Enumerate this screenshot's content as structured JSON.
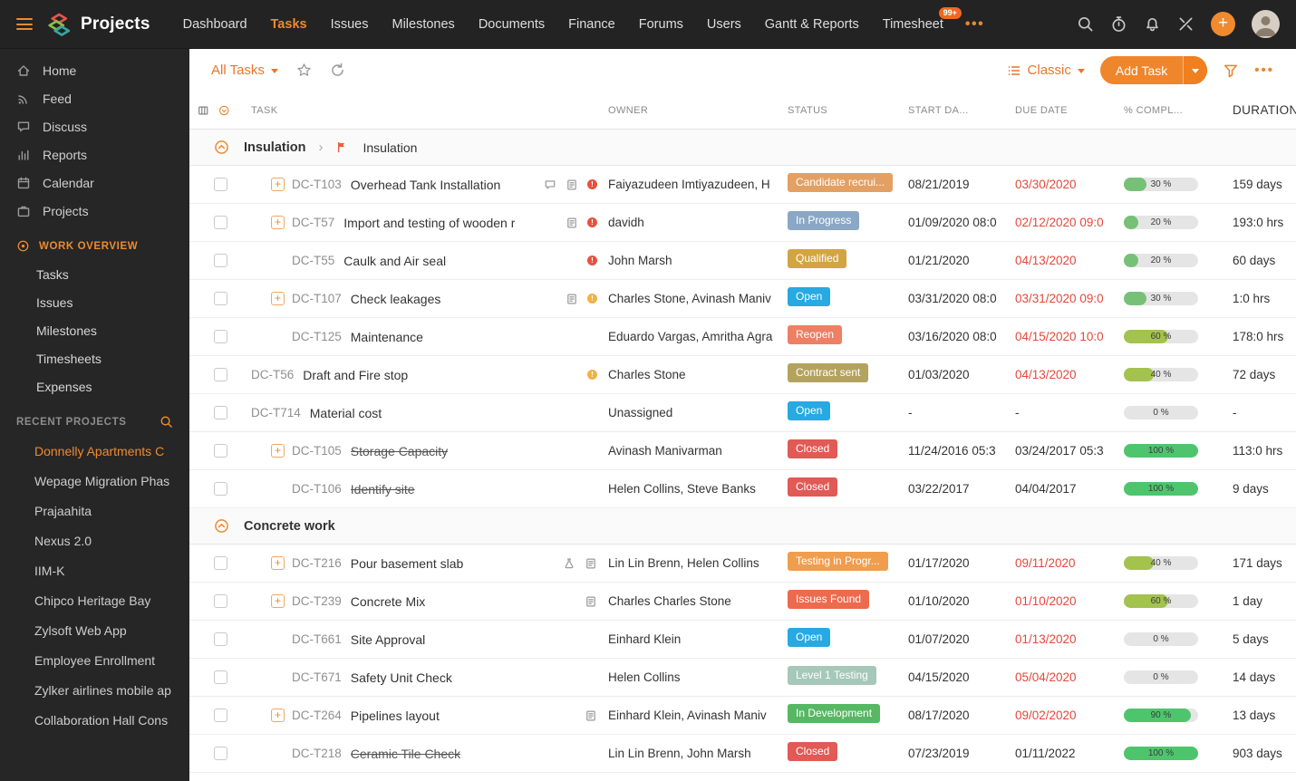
{
  "colors": {
    "accent": "#ef8a2e",
    "overdue_red": "#e5473a",
    "topbar_bg": "#232323",
    "sidebar_bg": "#262626",
    "priority_high": "#e8503e",
    "priority_medium": "#f5b041"
  },
  "topbar": {
    "logo": "Projects",
    "nav": [
      {
        "label": "Dashboard"
      },
      {
        "label": "Tasks",
        "active": true
      },
      {
        "label": "Issues"
      },
      {
        "label": "Milestones"
      },
      {
        "label": "Documents"
      },
      {
        "label": "Finance"
      },
      {
        "label": "Forums"
      },
      {
        "label": "Users"
      },
      {
        "label": "Gantt & Reports"
      },
      {
        "label": "Timesheet",
        "badge": "99+"
      }
    ],
    "more_label": "•••",
    "right_icons": [
      "search-icon",
      "timer-icon",
      "bell-icon",
      "tools-icon",
      "add-icon",
      "user-avatar"
    ]
  },
  "sidebar": {
    "main": [
      {
        "label": "Home",
        "icon": "home-icon"
      },
      {
        "label": "Feed",
        "icon": "feed-icon"
      },
      {
        "label": "Discuss",
        "icon": "discuss-icon"
      },
      {
        "label": "Reports",
        "icon": "reports-icon"
      },
      {
        "label": "Calendar",
        "icon": "calendar-icon"
      },
      {
        "label": "Projects",
        "icon": "projects-icon"
      }
    ],
    "work_overview": {
      "title": "WORK OVERVIEW",
      "icon": "target-icon",
      "items": [
        "Tasks",
        "Issues",
        "Milestones",
        "Timesheets",
        "Expenses"
      ]
    },
    "recent_projects": {
      "title": "RECENT PROJECTS",
      "icon": "search-icon",
      "items": [
        {
          "label": "Donnelly Apartments C",
          "active": true
        },
        {
          "label": "Wepage Migration Phas"
        },
        {
          "label": "Prajaahita"
        },
        {
          "label": "Nexus 2.0"
        },
        {
          "label": "IIM-K"
        },
        {
          "label": "Chipco Heritage Bay"
        },
        {
          "label": "Zylsoft Web App"
        },
        {
          "label": "Employee Enrollment"
        },
        {
          "label": "Zylker airlines mobile ap"
        },
        {
          "label": "Collaboration Hall Cons"
        }
      ]
    }
  },
  "toolbar": {
    "view_selector": "All Tasks",
    "layout_selector": "Classic",
    "add_task_label": "Add Task",
    "more_label": "•••",
    "icons": [
      "star-icon",
      "refresh-icon",
      "list-view-icon",
      "filter-icon"
    ]
  },
  "table": {
    "header_icons": [
      "columns-icon",
      "collapse-all-icon"
    ],
    "headers": [
      "TASK",
      "OWNER",
      "STATUS",
      "START DA...",
      "DUE DATE",
      "% COMPL...",
      "DURATION"
    ],
    "groups": [
      {
        "name": "Insulation",
        "milestone": "Insulation",
        "rows": [
          {
            "id": "DC-T103",
            "name": "Overhead Tank Installation",
            "lead": "expand",
            "icons": [
              "comment-icon",
              "doc-icon"
            ],
            "prio": "#e8503e",
            "owner": "Faiyazudeen Imtiyazudeen, H",
            "status": {
              "label": "Candidate recrui...",
              "color": "#e4a062"
            },
            "start": "08/21/2019",
            "due": "03/30/2020",
            "overdue": true,
            "pct": 30,
            "bar": "#77c077",
            "dur": "159 days"
          },
          {
            "id": "DC-T57",
            "name": "Import and testing of wooden r",
            "lead": "expand",
            "icons": [
              "doc-icon"
            ],
            "prio": "#e8503e",
            "owner": "davidh",
            "status": {
              "label": "In Progress",
              "color": "#8ba7c6"
            },
            "start": "01/09/2020 08:0",
            "due": "02/12/2020 09:0",
            "overdue": true,
            "pct": 20,
            "bar": "#77c077",
            "dur": "193:0 hrs"
          },
          {
            "id": "DC-T55",
            "name": "Caulk and Air seal",
            "lead": "sub",
            "icons": [],
            "prio": "#e8503e",
            "owner": "John Marsh",
            "status": {
              "label": "Qualified",
              "color": "#d2a542"
            },
            "start": "01/21/2020",
            "due": "04/13/2020",
            "overdue": true,
            "pct": 20,
            "bar": "#77c077",
            "dur": "60 days"
          },
          {
            "id": "DC-T107",
            "name": "Check leakages",
            "lead": "expand",
            "icons": [
              "doc-icon"
            ],
            "prio": "#f5b041",
            "owner": "Charles Stone, Avinash Maniv",
            "status": {
              "label": "Open",
              "color": "#27a9e1"
            },
            "start": "03/31/2020 08:0",
            "due": "03/31/2020 09:0",
            "overdue": true,
            "pct": 30,
            "bar": "#77c077",
            "dur": "1:0 hrs"
          },
          {
            "id": "DC-T125",
            "name": "Maintenance",
            "lead": "sub",
            "owner": "Eduardo Vargas, Amritha Agra",
            "status": {
              "label": "Reopen",
              "color": "#ee7f63"
            },
            "start": "03/16/2020 08:0",
            "due": "04/15/2020 10:0",
            "overdue": true,
            "pct": 60,
            "bar": "#a3c24e",
            "dur": "178:0 hrs"
          },
          {
            "id": "DC-T56",
            "name": "Draft and Fire stop",
            "lead": "top",
            "prio": "#f5b041",
            "owner": "Charles Stone",
            "status": {
              "label": "Contract sent",
              "color": "#b3a35e"
            },
            "start": "01/03/2020",
            "due": "04/13/2020",
            "overdue": true,
            "pct": 40,
            "bar": "#a3c24e",
            "dur": "72 days"
          },
          {
            "id": "DC-T714",
            "name": "Material cost",
            "lead": "top",
            "owner": "Unassigned",
            "status": {
              "label": "Open",
              "color": "#27a9e1"
            },
            "start": "-",
            "due": "-",
            "overdue": false,
            "pct": 0,
            "dur": "-"
          },
          {
            "id": "DC-T105",
            "name": "Storage Capacity",
            "struck": true,
            "lead": "expand",
            "owner": "Avinash Manivarman",
            "status": {
              "label": "Closed",
              "color": "#e15a55"
            },
            "start": "11/24/2016 05:3",
            "due": "03/24/2017 05:3",
            "overdue": false,
            "pct": 100,
            "bar": "#4ec56d",
            "dur": "113:0 hrs"
          },
          {
            "id": "DC-T106",
            "name": "Identify site",
            "struck": true,
            "lead": "sub",
            "owner": "Helen Collins, Steve Banks",
            "status": {
              "label": "Closed",
              "color": "#e15a55"
            },
            "start": "03/22/2017",
            "due": "04/04/2017",
            "overdue": false,
            "pct": 100,
            "bar": "#4ec56d",
            "dur": "9 days"
          }
        ]
      },
      {
        "name": "Concrete work",
        "milestone": null,
        "rows": [
          {
            "id": "DC-T216",
            "name": "Pour basement slab",
            "lead": "expand",
            "icons": [
              "flask-icon",
              "doc-icon"
            ],
            "owner": "Lin Lin Brenn, Helen Collins",
            "status": {
              "label": "Testing in Progr...",
              "color": "#f09d4e"
            },
            "start": "01/17/2020",
            "due": "09/11/2020",
            "overdue": true,
            "pct": 40,
            "bar": "#a3c24e",
            "dur": "171 days"
          },
          {
            "id": "DC-T239",
            "name": "Concrete Mix",
            "lead": "expand",
            "icons": [
              "doc-icon"
            ],
            "owner": "Charles Charles Stone",
            "status": {
              "label": "Issues Found",
              "color": "#ed6a4d"
            },
            "start": "01/10/2020",
            "due": "01/10/2020",
            "overdue": true,
            "pct": 60,
            "bar": "#a3c24e",
            "dur": "1 day"
          },
          {
            "id": "DC-T661",
            "name": "Site Approval",
            "lead": "sub",
            "owner": "Einhard Klein",
            "status": {
              "label": "Open",
              "color": "#27a9e1"
            },
            "start": "01/07/2020",
            "due": "01/13/2020",
            "overdue": true,
            "pct": 0,
            "dur": "5 days"
          },
          {
            "id": "DC-T671",
            "name": "Safety Unit Check",
            "lead": "sub",
            "owner": "Helen Collins",
            "status": {
              "label": "Level 1 Testing",
              "color": "#a5c8ba"
            },
            "start": "04/15/2020",
            "due": "05/04/2020",
            "overdue": true,
            "pct": 0,
            "dur": "14 days"
          },
          {
            "id": "DC-T264",
            "name": "Pipelines layout",
            "lead": "expand",
            "icons": [
              "doc-icon"
            ],
            "owner": "Einhard Klein, Avinash Maniv",
            "status": {
              "label": "In Development",
              "color": "#56b863"
            },
            "start": "08/17/2020",
            "due": "09/02/2020",
            "overdue": true,
            "pct": 90,
            "bar": "#4ec56d",
            "dur": "13 days"
          },
          {
            "id": "DC-T218",
            "name": "Ceramic Tile Check",
            "struck": true,
            "lead": "sub",
            "owner": "Lin Lin Brenn, John Marsh",
            "status": {
              "label": "Closed",
              "color": "#e15a55"
            },
            "start": "07/23/2019",
            "due": "01/11/2022",
            "overdue": false,
            "pct": 100,
            "bar": "#4ec56d",
            "dur": "903 days"
          }
        ]
      }
    ]
  }
}
